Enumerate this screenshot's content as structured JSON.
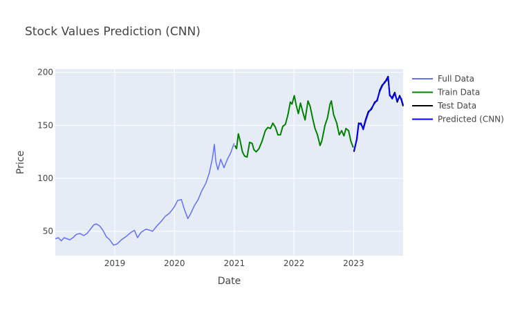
{
  "chart_data": {
    "type": "line",
    "title": "Stock Values Prediction (CNN)",
    "xlabel": "Date",
    "ylabel": "Price",
    "xlim": [
      "2018-01-02",
      "2023-10-31"
    ],
    "ylim": [
      27,
      203
    ],
    "xticks": [
      {
        "date": "2019-01-01",
        "label": "2019"
      },
      {
        "date": "2020-01-01",
        "label": "2020"
      },
      {
        "date": "2021-01-01",
        "label": "2021"
      },
      {
        "date": "2022-01-01",
        "label": "2022"
      },
      {
        "date": "2023-01-01",
        "label": "2023"
      }
    ],
    "yticks": [
      50,
      100,
      150,
      200
    ],
    "grid": true,
    "legend_position": "top-right",
    "background": "#e5ecf6",
    "series": [
      {
        "name": "Full Data",
        "color": "#636efa",
        "x": [
          "2018-01-02",
          "2018-01-20",
          "2018-02-08",
          "2018-02-25",
          "2018-03-15",
          "2018-04-01",
          "2018-04-20",
          "2018-05-10",
          "2018-06-01",
          "2018-06-25",
          "2018-07-15",
          "2018-08-05",
          "2018-08-25",
          "2018-09-10",
          "2018-10-01",
          "2018-10-20",
          "2018-11-10",
          "2018-12-01",
          "2018-12-24",
          "2019-01-15",
          "2019-02-10",
          "2019-03-10",
          "2019-04-10",
          "2019-05-01",
          "2019-05-20",
          "2019-06-10",
          "2019-07-10",
          "2019-08-05",
          "2019-08-20",
          "2019-09-15",
          "2019-10-10",
          "2019-11-05",
          "2019-12-01",
          "2019-12-31",
          "2020-01-20",
          "2020-02-12",
          "2020-03-01",
          "2020-03-23",
          "2020-04-10",
          "2020-05-01",
          "2020-05-25",
          "2020-06-15",
          "2020-07-10",
          "2020-08-01",
          "2020-08-20",
          "2020-09-01",
          "2020-09-10",
          "2020-09-23",
          "2020-10-10",
          "2020-10-30",
          "2020-11-20",
          "2020-12-10",
          "2020-12-31"
        ],
        "y": [
          43,
          44,
          41,
          44,
          43,
          42,
          44,
          47,
          48,
          46,
          48,
          52,
          56,
          57,
          55,
          51,
          45,
          42,
          37,
          38,
          42,
          45,
          49,
          51,
          44,
          49,
          52,
          51,
          50,
          55,
          59,
          64,
          67,
          73,
          79,
          80,
          71,
          62,
          67,
          74,
          80,
          88,
          95,
          105,
          119,
          132,
          116,
          108,
          118,
          110,
          118,
          124,
          133
        ]
      },
      {
        "name": "Train Data",
        "color": "#008000",
        "x": [
          "2021-01-04",
          "2021-01-15",
          "2021-01-26",
          "2021-02-05",
          "2021-02-20",
          "2021-03-05",
          "2021-03-20",
          "2021-04-05",
          "2021-04-20",
          "2021-05-01",
          "2021-05-15",
          "2021-06-01",
          "2021-06-20",
          "2021-07-10",
          "2021-07-25",
          "2021-08-10",
          "2021-08-25",
          "2021-09-10",
          "2021-09-25",
          "2021-10-10",
          "2021-10-25",
          "2021-11-10",
          "2021-11-25",
          "2021-12-10",
          "2021-12-20",
          "2022-01-03",
          "2022-01-15",
          "2022-01-28",
          "2022-02-10",
          "2022-02-25",
          "2022-03-10",
          "2022-03-28",
          "2022-04-10",
          "2022-04-25",
          "2022-05-10",
          "2022-05-25",
          "2022-06-10",
          "2022-06-20",
          "2022-07-10",
          "2022-07-25",
          "2022-08-10",
          "2022-08-18",
          "2022-09-01",
          "2022-09-20",
          "2022-10-05",
          "2022-10-20",
          "2022-11-03",
          "2022-11-15",
          "2022-12-01",
          "2022-12-15",
          "2022-12-30"
        ],
        "y": [
          131,
          128,
          142,
          136,
          125,
          121,
          120,
          134,
          133,
          127,
          125,
          128,
          135,
          145,
          148,
          147,
          152,
          148,
          141,
          141,
          149,
          151,
          160,
          172,
          170,
          178,
          169,
          161,
          171,
          162,
          155,
          173,
          168,
          157,
          147,
          141,
          131,
          135,
          150,
          157,
          170,
          173,
          160,
          152,
          141,
          145,
          140,
          147,
          145,
          135,
          129
        ]
      },
      {
        "name": "Test Data",
        "color": "#000000",
        "x": [
          "2023-01-03",
          "2023-01-20",
          "2023-02-01",
          "2023-02-15",
          "2023-03-01",
          "2023-03-15",
          "2023-04-01",
          "2023-04-20",
          "2023-05-10",
          "2023-05-25",
          "2023-06-10",
          "2023-06-25",
          "2023-07-10",
          "2023-07-20",
          "2023-07-31",
          "2023-08-10",
          "2023-08-25",
          "2023-09-10",
          "2023-09-25",
          "2023-10-10",
          "2023-10-20",
          "2023-10-31"
        ],
        "y": [
          125,
          137,
          152,
          151,
          147,
          155,
          163,
          165,
          172,
          173,
          183,
          188,
          190,
          193,
          196,
          178,
          176,
          181,
          172,
          178,
          174,
          168
        ]
      },
      {
        "name": "Predicted (CNN)",
        "color": "#0000ff",
        "x": [
          "2023-01-03",
          "2023-01-20",
          "2023-02-01",
          "2023-02-15",
          "2023-03-01",
          "2023-03-15",
          "2023-04-01",
          "2023-04-20",
          "2023-05-10",
          "2023-05-25",
          "2023-06-10",
          "2023-06-25",
          "2023-07-10",
          "2023-07-20",
          "2023-07-31",
          "2023-08-10",
          "2023-08-25",
          "2023-09-10",
          "2023-09-25",
          "2023-10-10",
          "2023-10-20",
          "2023-10-31"
        ],
        "y": [
          126,
          136,
          151,
          152,
          146,
          154,
          162,
          166,
          171,
          174,
          182,
          187,
          191,
          192,
          195,
          179,
          175,
          180,
          173,
          177,
          175,
          169
        ]
      }
    ]
  }
}
